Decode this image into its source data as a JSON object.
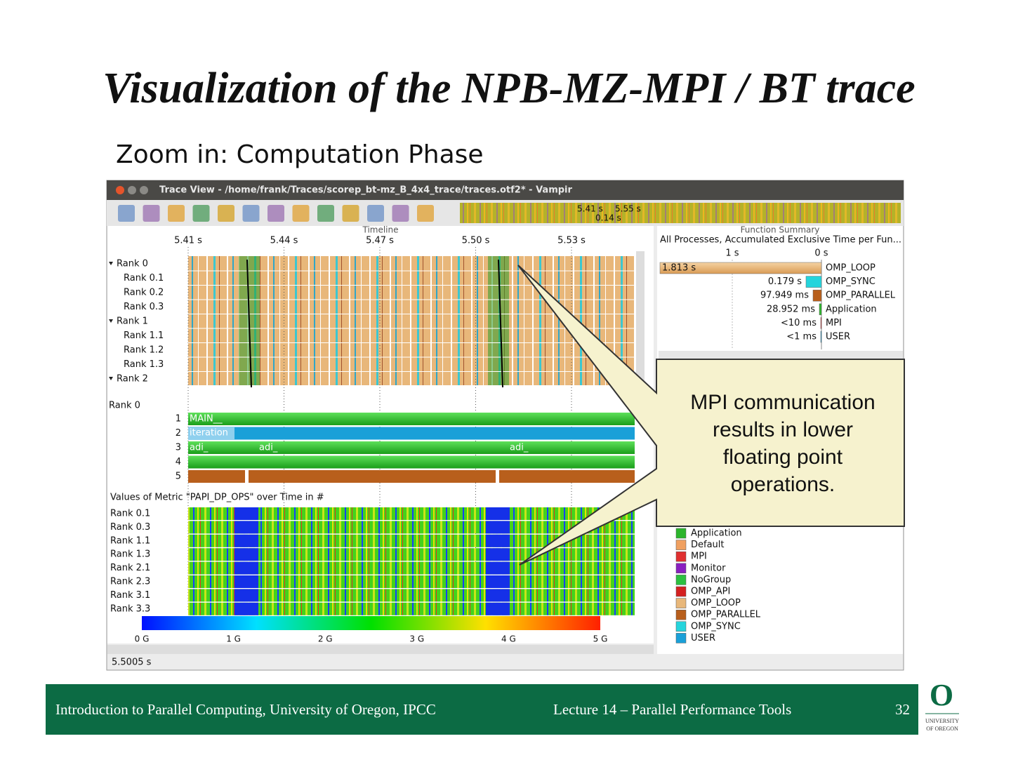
{
  "slide": {
    "title": "Visualization of the NPB-MZ-MPI / BT trace",
    "subtitle": "Zoom in: Computation Phase"
  },
  "window": {
    "title": "Trace View - /home/frank/Traces/scorep_bt-mz_B_4x4_trace/traces.otf2* - Vampir",
    "overview_labels": [
      "5.41 s",
      "5.55 s",
      "0.14 s"
    ],
    "status": "5.5005 s"
  },
  "timeline": {
    "title": "Timeline",
    "ticks": [
      "5.41 s",
      "5.44 s",
      "5.47 s",
      "5.50 s",
      "5.53 s"
    ],
    "rows": [
      "Rank 0",
      "Rank 0.1",
      "Rank 0.2",
      "Rank 0.3",
      "Rank 1",
      "Rank 1.1",
      "Rank 1.2",
      "Rank 1.3",
      "Rank 2"
    ]
  },
  "process_timeline": {
    "process": "Rank 0",
    "levels": [
      "1",
      "2",
      "3",
      "4",
      "5"
    ],
    "labels": [
      "MAIN__",
      "iteration",
      "adi_",
      "adi_",
      "adi_"
    ]
  },
  "counter": {
    "title": "Values of Metric \"PAPI_DP_OPS\" over Time in #",
    "rows": [
      "Rank 0.1",
      "Rank 0.3",
      "Rank 1.1",
      "Rank 1.3",
      "Rank 2.1",
      "Rank 2.3",
      "Rank 3.1",
      "Rank 3.3"
    ],
    "scale": [
      "0 G",
      "1 G",
      "2 G",
      "3 G",
      "4 G",
      "5 G"
    ]
  },
  "function_summary": {
    "title": "Function Summary",
    "subtitle": "All Processes, Accumulated Exclusive Time per Fun...",
    "axis": [
      "1 s",
      "0 s"
    ],
    "rows": [
      {
        "value": "1.813 s",
        "name": "OMP_LOOP"
      },
      {
        "value": "0.179 s",
        "name": "OMP_SYNC"
      },
      {
        "value": "97.949 ms",
        "name": "OMP_PARALLEL"
      },
      {
        "value": "28.952 ms",
        "name": "Application"
      },
      {
        "value": "<10 ms",
        "name": "MPI"
      },
      {
        "value": "<1 ms",
        "name": "USER"
      }
    ]
  },
  "legend": [
    "Application",
    "Default",
    "MPI",
    "Monitor",
    "NoGroup",
    "OMP_API",
    "OMP_LOOP",
    "OMP_PARALLEL",
    "OMP_SYNC",
    "USER"
  ],
  "callout": [
    "MPI communication",
    "results in lower",
    "floating point",
    "operations."
  ],
  "footer": {
    "left": "Introduction to Parallel Computing, University of Oregon, IPCC",
    "center": "Lecture 14 – Parallel Performance Tools",
    "page": "32",
    "logo": "O",
    "logo_lines": [
      "UNIVERSITY",
      "OF OREGON"
    ]
  }
}
